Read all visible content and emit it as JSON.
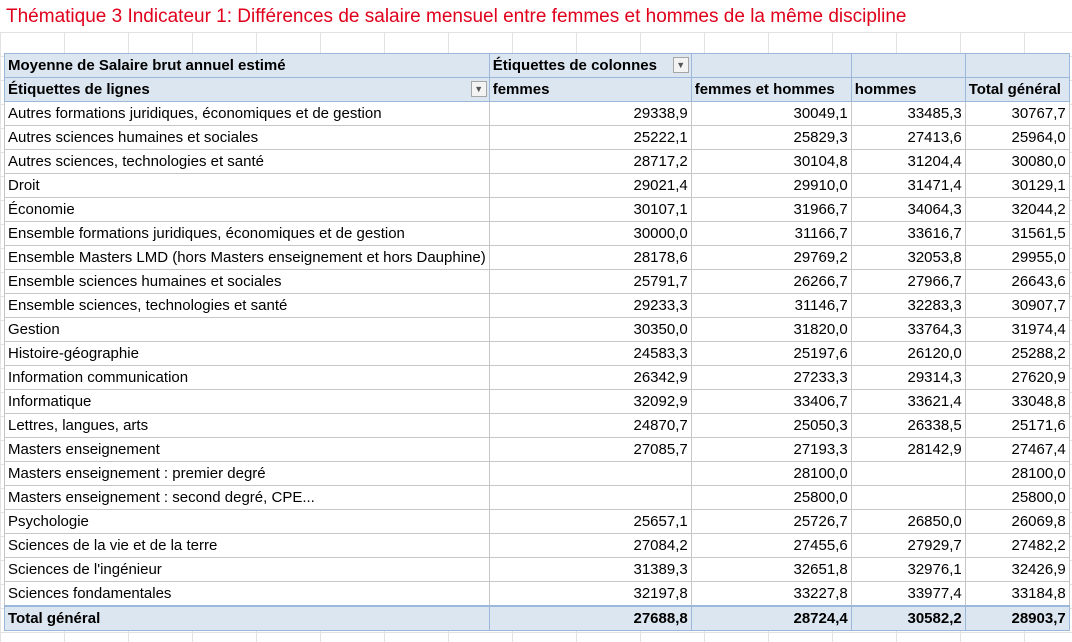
{
  "title": "Thématique 3 Indicateur 1: Différences de salaire mensuel entre femmes et hommes de la même discipline",
  "pivot": {
    "value_label": "Moyenne de Salaire brut annuel estimé",
    "column_labels_header": "Étiquettes de colonnes",
    "row_labels_header": "Étiquettes de lignes",
    "columns": [
      "femmes",
      "femmes et hommes",
      "hommes",
      "Total général"
    ],
    "rows": [
      {
        "label": "Autres formations juridiques, économiques et de gestion",
        "values": [
          "29338,9",
          "30049,1",
          "33485,3",
          "30767,7"
        ]
      },
      {
        "label": "Autres sciences humaines et sociales",
        "values": [
          "25222,1",
          "25829,3",
          "27413,6",
          "25964,0"
        ]
      },
      {
        "label": "Autres sciences, technologies et santé",
        "values": [
          "28717,2",
          "30104,8",
          "31204,4",
          "30080,0"
        ]
      },
      {
        "label": "Droit",
        "values": [
          "29021,4",
          "29910,0",
          "31471,4",
          "30129,1"
        ]
      },
      {
        "label": "Économie",
        "values": [
          "30107,1",
          "31966,7",
          "34064,3",
          "32044,2"
        ]
      },
      {
        "label": "Ensemble formations juridiques, économiques et de gestion",
        "values": [
          "30000,0",
          "31166,7",
          "33616,7",
          "31561,5"
        ]
      },
      {
        "label": "Ensemble Masters LMD (hors Masters enseignement et hors Dauphine)",
        "values": [
          "28178,6",
          "29769,2",
          "32053,8",
          "29955,0"
        ]
      },
      {
        "label": "Ensemble sciences humaines et sociales",
        "values": [
          "25791,7",
          "26266,7",
          "27966,7",
          "26643,6"
        ]
      },
      {
        "label": "Ensemble sciences, technologies et santé",
        "values": [
          "29233,3",
          "31146,7",
          "32283,3",
          "30907,7"
        ]
      },
      {
        "label": "Gestion",
        "values": [
          "30350,0",
          "31820,0",
          "33764,3",
          "31974,4"
        ]
      },
      {
        "label": "Histoire-géographie",
        "values": [
          "24583,3",
          "25197,6",
          "26120,0",
          "25288,2"
        ]
      },
      {
        "label": "Information communication",
        "values": [
          "26342,9",
          "27233,3",
          "29314,3",
          "27620,9"
        ]
      },
      {
        "label": "Informatique",
        "values": [
          "32092,9",
          "33406,7",
          "33621,4",
          "33048,8"
        ]
      },
      {
        "label": "Lettres, langues, arts",
        "values": [
          "24870,7",
          "25050,3",
          "26338,5",
          "25171,6"
        ]
      },
      {
        "label": "Masters enseignement",
        "values": [
          "27085,7",
          "27193,3",
          "28142,9",
          "27467,4"
        ]
      },
      {
        "label": "Masters enseignement : premier degré",
        "values": [
          "",
          "28100,0",
          "",
          "28100,0"
        ]
      },
      {
        "label": "Masters enseignement : second degré, CPE...",
        "values": [
          "",
          "25800,0",
          "",
          "25800,0"
        ]
      },
      {
        "label": "Psychologie",
        "values": [
          "25657,1",
          "25726,7",
          "26850,0",
          "26069,8"
        ]
      },
      {
        "label": "Sciences de la vie et de la terre",
        "values": [
          "27084,2",
          "27455,6",
          "27929,7",
          "27482,2"
        ]
      },
      {
        "label": "Sciences de l'ingénieur",
        "values": [
          "31389,3",
          "32651,8",
          "32976,1",
          "32426,9"
        ]
      },
      {
        "label": "Sciences fondamentales",
        "values": [
          "32197,8",
          "33227,8",
          "33977,4",
          "33184,8"
        ]
      }
    ],
    "total": {
      "label": "Total général",
      "values": [
        "27688,8",
        "28724,4",
        "30582,2",
        "28903,7"
      ]
    }
  }
}
